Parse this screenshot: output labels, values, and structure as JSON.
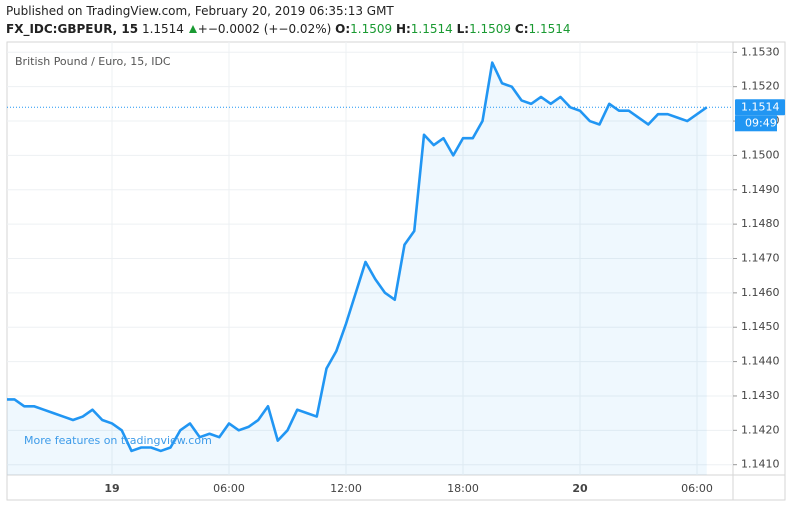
{
  "header": {
    "published": "Published on TradingView.com, February 20, 2019 06:35:13 GMT",
    "symbol": "FX_IDC:GBPEUR, 15",
    "price": "1.1514",
    "change": "+−0.0002 (+−0.02%)",
    "ohlc": [
      {
        "label": "O:",
        "value": "1.1509"
      },
      {
        "label": "H:",
        "value": "1.1514"
      },
      {
        "label": "L:",
        "value": "1.1509"
      },
      {
        "label": "C:",
        "value": "1.1514"
      }
    ]
  },
  "chart_data": {
    "type": "area",
    "title": "British Pound / Euro, 15, IDC",
    "watermark": "More features on tradingview.com",
    "categories": [
      null,
      null,
      null,
      null,
      null,
      null,
      null,
      null,
      null,
      null,
      null,
      "19",
      null,
      null,
      null,
      null,
      null,
      null,
      null,
      null,
      null,
      null,
      null,
      "06:00",
      null,
      null,
      null,
      null,
      null,
      null,
      null,
      null,
      null,
      null,
      null,
      "12:00",
      null,
      null,
      null,
      null,
      null,
      null,
      null,
      null,
      null,
      null,
      null,
      "18:00",
      null,
      null,
      null,
      null,
      null,
      null,
      null,
      null,
      null,
      null,
      null,
      "20",
      null,
      null,
      null,
      null,
      null,
      null,
      null,
      null,
      null,
      null,
      null,
      "06:00",
      null
    ],
    "values": [
      1.1429,
      1.1429,
      1.1427,
      1.1427,
      1.1426,
      1.1425,
      1.1424,
      1.1423,
      1.1424,
      1.1426,
      1.1423,
      1.1422,
      1.142,
      1.1414,
      1.1415,
      1.1415,
      1.1414,
      1.1415,
      1.142,
      1.1422,
      1.1418,
      1.1419,
      1.1418,
      1.1422,
      1.142,
      1.1421,
      1.1423,
      1.1427,
      1.1417,
      1.142,
      1.1426,
      1.1425,
      1.1424,
      1.1438,
      1.1443,
      1.1451,
      1.146,
      1.1469,
      1.1464,
      1.146,
      1.1458,
      1.1474,
      1.1478,
      1.1506,
      1.1503,
      1.1505,
      1.15,
      1.1505,
      1.1505,
      1.151,
      1.1527,
      1.1521,
      1.152,
      1.1516,
      1.1515,
      1.1517,
      1.1515,
      1.1517,
      1.1514,
      1.1513,
      1.151,
      1.1509,
      1.1515,
      1.1513,
      1.1513,
      1.1511,
      1.1509,
      1.1512,
      1.1512,
      1.1511,
      1.151,
      1.1512,
      1.1514
    ],
    "color": "#2196f3",
    "ylim": [
      1.1407,
      1.1533
    ],
    "yticks": [
      {
        "value": 1.141,
        "label": "1.1410"
      },
      {
        "value": 1.142,
        "label": "1.1420"
      },
      {
        "value": 1.143,
        "label": "1.1430"
      },
      {
        "value": 1.144,
        "label": "1.1440"
      },
      {
        "value": 1.145,
        "label": "1.1450"
      },
      {
        "value": 1.146,
        "label": "1.1460"
      },
      {
        "value": 1.147,
        "label": "1.1470"
      },
      {
        "value": 1.148,
        "label": "1.1480"
      },
      {
        "value": 1.149,
        "label": "1.1490"
      },
      {
        "value": 1.15,
        "label": "1.1500"
      },
      {
        "value": 1.151,
        "label": "1.1510"
      },
      {
        "value": 1.152,
        "label": "1.1520"
      },
      {
        "value": 1.153,
        "label": "1.1530"
      }
    ],
    "price_marker": {
      "value": 1.1514,
      "label": "1.1514"
    },
    "countdown": "09:49",
    "grid": true
  }
}
